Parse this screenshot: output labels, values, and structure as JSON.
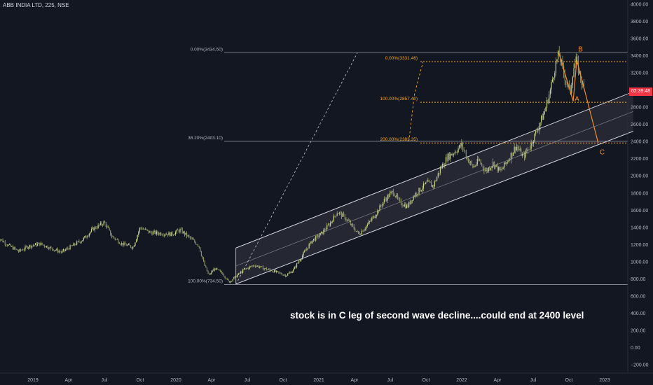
{
  "header": {
    "title": "ABB INDIA LTD, 225, NSE"
  },
  "annotation": "stock is in C leg of second wave decline....could end at 2400 level",
  "price_tag": "02:39:48",
  "colors": {
    "background": "#131722",
    "candle": "#c8d38b",
    "channel": "#d1d4dc",
    "fib_white": "#b2b5be",
    "fib_orange": "#f5a623",
    "wave": "#f28c28",
    "price_tag": "#f23645"
  },
  "chart_data": {
    "type": "line",
    "title": "ABB INDIA LTD, 225, NSE",
    "xlabel": "",
    "ylabel": "",
    "ylim": [
      -200,
      4000
    ],
    "y_ticks": [
      -200,
      0,
      200,
      400,
      600,
      800,
      1000,
      1200,
      1400,
      1600,
      1800,
      2000,
      2200,
      2400,
      2600,
      2800,
      3000,
      3200,
      3400,
      3600,
      3800,
      4000
    ],
    "y_tick_labels": [
      "−200.00",
      "0.00",
      "200.00",
      "400.00",
      "600.00",
      "800.00",
      "1000.00",
      "1200.00",
      "1400.00",
      "1600.00",
      "1800.00",
      "2000.00",
      "2200.00",
      "2400.00",
      "2600.00",
      "2800.00",
      "3000.00",
      "3200.00",
      "3400.00",
      "3600.00",
      "3800.00",
      "4000.00"
    ],
    "x_ticks": [
      {
        "label": "2019",
        "t": 2019.0
      },
      {
        "label": "Apr",
        "t": 2019.25
      },
      {
        "label": "Jul",
        "t": 2019.5
      },
      {
        "label": "Oct",
        "t": 2019.75
      },
      {
        "label": "2020",
        "t": 2020.0
      },
      {
        "label": "Apr",
        "t": 2020.25
      },
      {
        "label": "Jul",
        "t": 2020.5
      },
      {
        "label": "Oct",
        "t": 2020.75
      },
      {
        "label": "2021",
        "t": 2021.0
      },
      {
        "label": "Apr",
        "t": 2021.25
      },
      {
        "label": "Jul",
        "t": 2021.5
      },
      {
        "label": "Oct",
        "t": 2021.75
      },
      {
        "label": "2022",
        "t": 2022.0
      },
      {
        "label": "Apr",
        "t": 2022.25
      },
      {
        "label": "Jul",
        "t": 2022.5
      },
      {
        "label": "Oct",
        "t": 2022.75
      },
      {
        "label": "2023",
        "t": 2023.0
      }
    ],
    "x_range": [
      2018.75,
      2023.2
    ],
    "series": [
      {
        "values": [
          [
            2018.75,
            1290
          ],
          [
            2018.82,
            1200
          ],
          [
            2018.9,
            1120
          ],
          [
            2018.97,
            1180
          ],
          [
            2019.05,
            1210
          ],
          [
            2019.12,
            1160
          ],
          [
            2019.2,
            1110
          ],
          [
            2019.28,
            1190
          ],
          [
            2019.35,
            1260
          ],
          [
            2019.42,
            1380
          ],
          [
            2019.5,
            1460
          ],
          [
            2019.55,
            1300
          ],
          [
            2019.62,
            1210
          ],
          [
            2019.7,
            1170
          ],
          [
            2019.75,
            1400
          ],
          [
            2019.82,
            1340
          ],
          [
            2019.9,
            1330
          ],
          [
            2019.97,
            1320
          ],
          [
            2020.03,
            1370
          ],
          [
            2020.08,
            1300
          ],
          [
            2020.16,
            1190
          ],
          [
            2020.2,
            960
          ],
          [
            2020.23,
            840
          ],
          [
            2020.27,
            920
          ],
          [
            2020.33,
            860
          ],
          [
            2020.37,
            760
          ],
          [
            2020.42,
            830
          ],
          [
            2020.48,
            910
          ],
          [
            2020.55,
            960
          ],
          [
            2020.62,
            920
          ],
          [
            2020.7,
            880
          ],
          [
            2020.77,
            840
          ],
          [
            2020.82,
            900
          ],
          [
            2020.88,
            1060
          ],
          [
            2020.95,
            1240
          ],
          [
            2021.02,
            1330
          ],
          [
            2021.08,
            1450
          ],
          [
            2021.13,
            1580
          ],
          [
            2021.18,
            1520
          ],
          [
            2021.23,
            1420
          ],
          [
            2021.28,
            1320
          ],
          [
            2021.34,
            1430
          ],
          [
            2021.4,
            1560
          ],
          [
            2021.46,
            1720
          ],
          [
            2021.52,
            1820
          ],
          [
            2021.56,
            1700
          ],
          [
            2021.62,
            1640
          ],
          [
            2021.66,
            1760
          ],
          [
            2021.72,
            1860
          ],
          [
            2021.76,
            1920
          ],
          [
            2021.8,
            1880
          ],
          [
            2021.85,
            2080
          ],
          [
            2021.9,
            2220
          ],
          [
            2021.95,
            2280
          ],
          [
            2022.0,
            2360
          ],
          [
            2022.04,
            2200
          ],
          [
            2022.08,
            2100
          ],
          [
            2022.12,
            2180
          ],
          [
            2022.17,
            2050
          ],
          [
            2022.22,
            2150
          ],
          [
            2022.27,
            2050
          ],
          [
            2022.33,
            2200
          ],
          [
            2022.38,
            2350
          ],
          [
            2022.43,
            2220
          ],
          [
            2022.48,
            2350
          ],
          [
            2022.53,
            2550
          ],
          [
            2022.58,
            2750
          ],
          [
            2022.62,
            3000
          ],
          [
            2022.65,
            3250
          ],
          [
            2022.68,
            3430
          ],
          [
            2022.7,
            3280
          ],
          [
            2022.73,
            3100
          ],
          [
            2022.76,
            2980
          ],
          [
            2022.78,
            3250
          ],
          [
            2022.8,
            3340
          ],
          [
            2022.83,
            3150
          ],
          [
            2022.855,
            3000
          ]
        ]
      }
    ],
    "annotations": [
      {
        "text": "0.00%(3434.50)",
        "y": 3434.5
      },
      {
        "text": "38.20%(2403.10)",
        "y": 2403.1
      },
      {
        "text": "100.00%(734.50)",
        "y": 734.5
      },
      {
        "text": "0.00%(3331.46)",
        "y": 3331.46
      },
      {
        "text": "100.00%(2857.40)",
        "y": 2857.4
      },
      {
        "text": "200.00%(2383.35)",
        "y": 2383.35
      },
      {
        "text": "A",
        "t": 2022.78,
        "y": 2870
      },
      {
        "text": "B",
        "t": 2022.805,
        "y": 3450
      },
      {
        "text": "C",
        "t": 2022.955,
        "y": 2250
      }
    ],
    "channel": {
      "lower": [
        [
          2020.42,
          740
        ],
        [
          2023.2,
          2520
        ]
      ],
      "upper": [
        [
          2020.42,
          1160
        ],
        [
          2023.2,
          2980
        ]
      ]
    },
    "wave_path": [
      [
        2022.68,
        3430
      ],
      [
        2022.78,
        2870
      ],
      [
        2022.805,
        3350
      ],
      [
        2022.955,
        2383
      ]
    ],
    "fib_retracement": {
      "from": [
        2020.42,
        734.5
      ],
      "to": [
        2021.27,
        3434.5
      ]
    },
    "fib_extension": {
      "points": [
        [
          2021.63,
          2400
        ],
        [
          2021.67,
          2960
        ],
        [
          2021.73,
          3331.46
        ]
      ]
    },
    "grid": false,
    "legend": "none"
  }
}
